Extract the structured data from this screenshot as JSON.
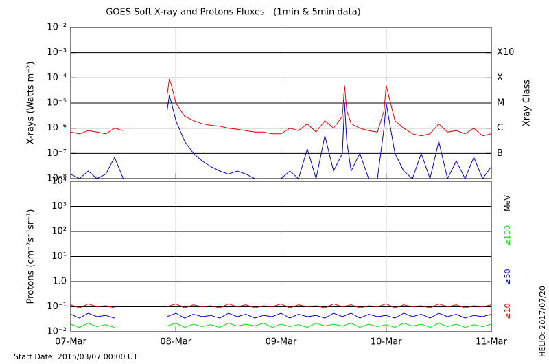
{
  "title": "GOES Soft X-ray and Protons Fluxes   (1min & 5min data)",
  "start_date": "Start Date: 2015/03/07 00:00 UT",
  "credit": "HELIO: 2017/07/20",
  "chart_data": [
    {
      "type": "line",
      "log_y": true,
      "grid": true,
      "ylabel": "X-rays (Watts m⁻²)",
      "xlim": [
        0,
        96
      ],
      "xticks": [
        {
          "value": 0,
          "label": "07-Mar"
        },
        {
          "value": 24,
          "label": "08-Mar"
        },
        {
          "value": 48,
          "label": "09-Mar"
        },
        {
          "value": 72,
          "label": "10-Mar"
        },
        {
          "value": 96,
          "label": "11-Mar"
        }
      ],
      "ylim": [
        1e-08,
        0.01
      ],
      "yticks": [
        {
          "value": 0.01,
          "label": "10⁻²"
        },
        {
          "value": 0.001,
          "label": "10⁻³"
        },
        {
          "value": 0.0001,
          "label": "10⁻⁴"
        },
        {
          "value": 1e-05,
          "label": "10⁻⁵"
        },
        {
          "value": 1e-06,
          "label": "10⁻⁶"
        },
        {
          "value": 1e-07,
          "label": "10⁻⁷"
        },
        {
          "value": 1e-08,
          "label": "10⁻⁸"
        }
      ],
      "right_axis_label": "Xray Class",
      "right_ticks": [
        {
          "value": 0.001,
          "label": "X10"
        },
        {
          "value": 0.0001,
          "label": "X"
        },
        {
          "value": 1e-05,
          "label": "M"
        },
        {
          "value": 1e-06,
          "label": "C"
        },
        {
          "value": 1e-07,
          "label": "B"
        }
      ],
      "x": [
        0,
        2,
        4,
        6,
        8,
        10,
        12,
        14,
        16,
        18,
        20,
        22,
        22.5,
        23,
        24,
        26,
        28,
        30,
        32,
        34,
        36,
        38,
        40,
        42,
        44,
        46,
        48,
        50,
        52,
        54,
        56,
        58,
        60,
        62,
        62.5,
        63,
        64,
        66,
        68,
        70,
        71.5,
        72,
        73,
        74,
        76,
        78,
        80,
        82,
        84,
        86,
        88,
        90,
        92,
        94,
        96
      ],
      "series": [
        {
          "color": "#e00000",
          "values": [
            7e-07,
            6e-07,
            8e-07,
            7e-07,
            6e-07,
            1e-06,
            8e-07,
            null,
            null,
            null,
            null,
            2e-05,
            9e-05,
            5e-05,
            1e-05,
            3e-06,
            2e-06,
            1.5e-06,
            1.3e-06,
            1.2e-06,
            1e-06,
            9e-07,
            8e-07,
            7e-07,
            7e-07,
            6e-07,
            6e-07,
            1e-06,
            8e-07,
            1.5e-06,
            7e-07,
            2e-06,
            1e-06,
            3e-06,
            5e-05,
            5e-06,
            1.5e-06,
            1e-06,
            8e-07,
            7e-07,
            5e-06,
            5e-05,
            1e-05,
            2e-06,
            1e-06,
            6e-07,
            5e-07,
            6e-07,
            1.5e-06,
            7e-07,
            8e-07,
            6e-07,
            1e-06,
            5e-07,
            6e-07
          ]
        },
        {
          "color": "#0000d0",
          "values": [
            1.5e-08,
            1e-08,
            2e-08,
            1e-08,
            1.5e-08,
            7e-08,
            1e-08,
            null,
            null,
            null,
            null,
            5e-06,
            2e-05,
            1e-05,
            2e-06,
            3e-07,
            1e-07,
            5e-08,
            3e-08,
            2e-08,
            1.5e-08,
            2e-08,
            1.5e-08,
            1e-08,
            null,
            null,
            1e-08,
            2e-08,
            1e-08,
            1.5e-07,
            1e-08,
            5e-07,
            2e-08,
            1e-07,
            1e-05,
            3e-07,
            2e-08,
            1e-07,
            1e-08,
            1e-08,
            1e-06,
            1e-05,
            1e-06,
            1e-07,
            2e-08,
            1e-08,
            1e-07,
            1e-08,
            3e-07,
            1e-08,
            5e-08,
            1e-08,
            7e-08,
            1e-08,
            3e-08
          ]
        }
      ]
    },
    {
      "type": "line",
      "log_y": true,
      "grid": true,
      "ylabel": "Protons (cm⁻²s⁻¹sr⁻¹)",
      "units_label": "MeV",
      "xlim": [
        0,
        96
      ],
      "xticks": [
        {
          "value": 0,
          "label": "07-Mar"
        },
        {
          "value": 24,
          "label": "08-Mar"
        },
        {
          "value": 48,
          "label": "09-Mar"
        },
        {
          "value": 72,
          "label": "10-Mar"
        },
        {
          "value": 96,
          "label": "11-Mar"
        }
      ],
      "ylim": [
        0.01,
        10000
      ],
      "yticks": [
        {
          "value": 10000,
          "label": "10⁴"
        },
        {
          "value": 1000,
          "label": "10³"
        },
        {
          "value": 100,
          "label": "10²"
        },
        {
          "value": 10,
          "label": "10¹"
        },
        {
          "value": 1,
          "label": "1.0"
        },
        {
          "value": 0.1,
          "label": "10⁻¹"
        },
        {
          "value": 0.01,
          "label": "10⁻²"
        }
      ],
      "x": [
        0,
        2,
        4,
        6,
        8,
        10,
        12,
        14,
        16,
        18,
        20,
        22,
        24,
        26,
        28,
        30,
        32,
        34,
        36,
        38,
        40,
        42,
        44,
        46,
        48,
        50,
        52,
        54,
        56,
        58,
        60,
        62,
        64,
        66,
        68,
        70,
        72,
        74,
        76,
        78,
        80,
        82,
        84,
        86,
        88,
        90,
        92,
        94,
        96
      ],
      "series": [
        {
          "name": "≥10",
          "color": "#e00000",
          "values": [
            0.12,
            0.09,
            0.13,
            0.1,
            0.11,
            0.09,
            null,
            null,
            null,
            null,
            null,
            0.1,
            0.13,
            0.09,
            0.12,
            0.1,
            0.11,
            0.09,
            0.13,
            0.1,
            0.12,
            0.09,
            0.11,
            0.1,
            0.13,
            0.09,
            0.12,
            0.1,
            0.11,
            0.09,
            0.13,
            0.1,
            0.12,
            0.09,
            0.11,
            0.1,
            0.13,
            0.09,
            0.12,
            0.1,
            0.11,
            0.09,
            0.13,
            0.1,
            0.12,
            0.09,
            0.11,
            0.1,
            0.12
          ]
        },
        {
          "name": "≥50",
          "color": "#0000d0",
          "values": [
            0.05,
            0.035,
            0.055,
            0.04,
            0.045,
            0.035,
            null,
            null,
            null,
            null,
            null,
            0.04,
            0.055,
            0.035,
            0.05,
            0.04,
            0.045,
            0.035,
            0.055,
            0.04,
            0.05,
            0.035,
            0.045,
            0.04,
            0.055,
            0.035,
            0.05,
            0.04,
            0.045,
            0.035,
            0.055,
            0.04,
            0.055,
            0.035,
            0.05,
            0.04,
            0.045,
            0.035,
            0.055,
            0.04,
            0.05,
            0.035,
            0.055,
            0.04,
            0.05,
            0.035,
            0.045,
            0.04,
            0.05
          ]
        },
        {
          "name": "≥100",
          "color": "#00e000",
          "values": [
            0.02,
            0.015,
            0.022,
            0.016,
            0.019,
            0.015,
            null,
            null,
            null,
            null,
            null,
            0.017,
            0.022,
            0.015,
            0.02,
            0.016,
            0.019,
            0.015,
            0.022,
            0.017,
            0.02,
            0.017,
            0.022,
            0.015,
            0.02,
            0.016,
            0.019,
            0.015,
            0.022,
            0.017,
            0.02,
            0.017,
            0.022,
            0.015,
            0.02,
            0.016,
            0.019,
            0.015,
            0.022,
            0.017,
            0.02,
            0.015,
            0.022,
            0.016,
            0.02,
            0.015,
            0.019,
            0.016,
            0.02
          ]
        }
      ]
    }
  ]
}
